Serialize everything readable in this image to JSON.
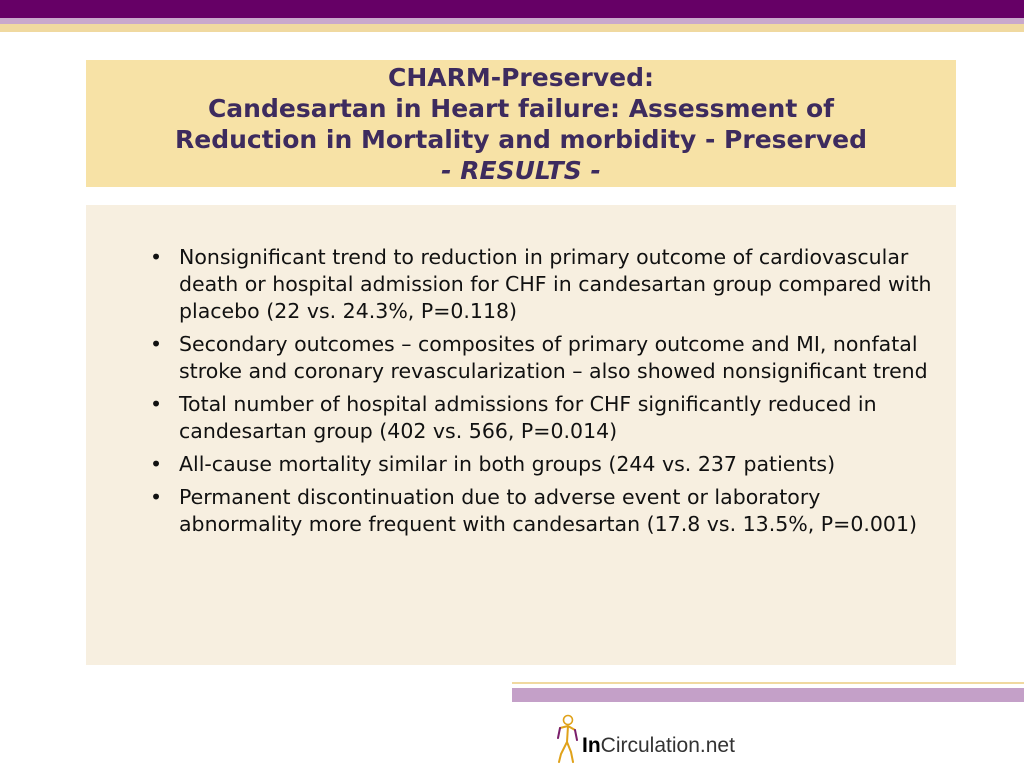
{
  "title": {
    "line1": "CHARM-Preserved:",
    "line2": "Candesartan in Heart failure: Assessment of",
    "line3": "Reduction in Mortality and morbidity - Preserved",
    "line4": "- RESULTS -"
  },
  "bullet_glyph": "•",
  "bullets": [
    "Nonsignificant trend to reduction in primary outcome of cardiovascular death or hospital admission for CHF in candesartan group compared with placebo (22 vs. 24.3%, P=0.118)",
    "Secondary outcomes – composites of primary outcome and MI, nonfatal stroke and coronary revascularization – also showed nonsignificant trend",
    "Total number of hospital admissions for CHF significantly reduced in candesartan group (402 vs. 566, P=0.014)",
    "All-cause mortality similar in both groups (244 vs. 237 patients)",
    "Permanent discontinuation due to adverse event or laboratory abnormality more frequent with candesartan (17.8 vs. 13.5%, P=0.001)"
  ],
  "logo": {
    "bold_part": "In",
    "rest": "Circulation.net",
    "icon": "human-figure-icon"
  },
  "colors": {
    "top_band": "#660066",
    "title_background": "#f7e2a6",
    "title_text": "#3d2b5e",
    "content_background": "#f7efe0"
  }
}
